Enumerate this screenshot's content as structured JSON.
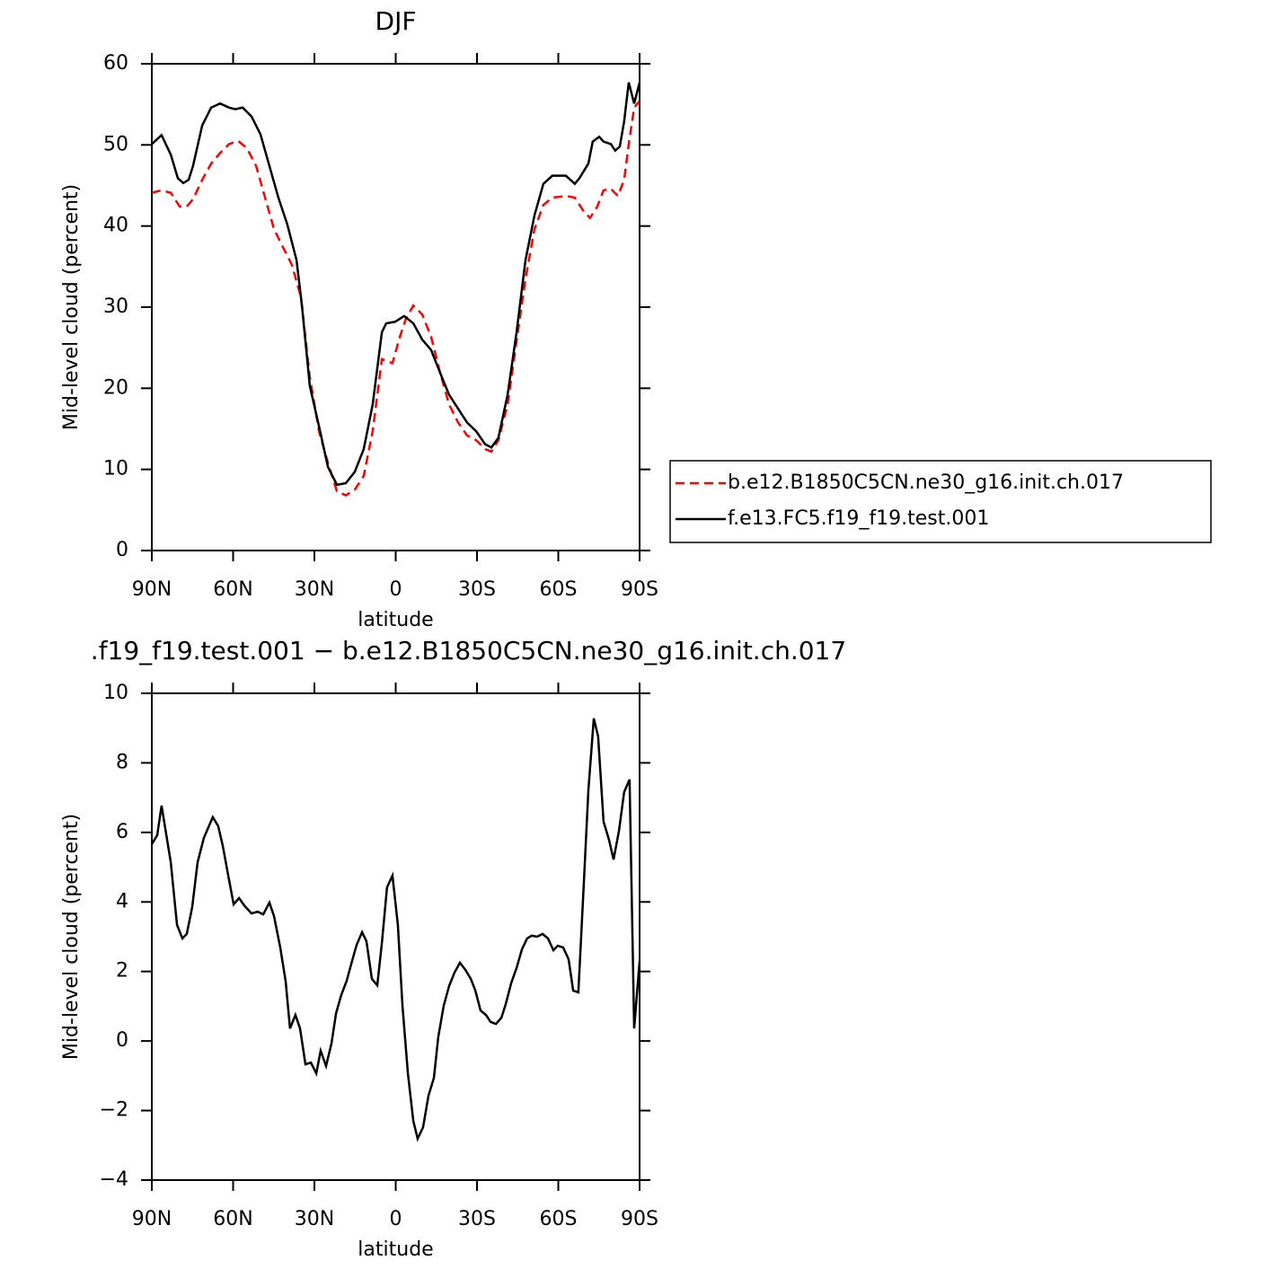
{
  "chart_data": [
    {
      "type": "line",
      "title": "DJF",
      "xlabel": "latitude",
      "ylabel": "Mid-level cloud (percent)",
      "xlim": [
        90,
        -90
      ],
      "xticks": [
        {
          "value": 90,
          "label": "90N"
        },
        {
          "value": 60,
          "label": "60N"
        },
        {
          "value": 30,
          "label": "30N"
        },
        0,
        {
          "value": -30,
          "label": "30S"
        },
        {
          "value": -60,
          "label": "60S"
        },
        {
          "value": -90,
          "label": "90S"
        }
      ],
      "ylim": [
        0,
        60
      ],
      "yticks": [
        0,
        10,
        20,
        30,
        40,
        50,
        60
      ],
      "legend": "right",
      "series": [
        {
          "name": "b.e12.B1850C5CN.ne30_g16.init.ch.017",
          "color": "#ff0000",
          "linestyle": "dashed",
          "x": [
            90,
            86.4,
            83,
            79.7,
            77.1,
            74.8,
            71.4,
            68.1,
            64.8,
            61.5,
            58.2,
            54.9,
            51.5,
            48.2,
            44.9,
            41.6,
            38.3,
            35,
            31.7,
            28.3,
            25,
            21.7,
            18.4,
            15.1,
            11.8,
            8.5,
            5.1,
            1.2,
            -1.5,
            -3.8,
            -6.5,
            -9.8,
            -13.1,
            -16.4,
            -19.7,
            -23,
            -26.3,
            -29.7,
            -33,
            -35.3,
            -37.9,
            -41.3,
            -44.6,
            -47.9,
            -51.2,
            -54.5,
            -57.8,
            -62.8,
            -66.1,
            -69.4,
            -71.7,
            -74.4,
            -76.7,
            -79.4,
            -82,
            -84.3,
            -86,
            -88,
            -90
          ],
          "values": [
            44.1,
            44.4,
            44.1,
            42.4,
            42.4,
            43.3,
            45.7,
            47.7,
            49,
            50.1,
            50.5,
            49.6,
            47.4,
            43.5,
            39.6,
            37.4,
            35.2,
            31.3,
            21.4,
            14.7,
            10.8,
            7.3,
            6.8,
            7.5,
            9.2,
            14.7,
            23.6,
            23.1,
            26.3,
            28.6,
            30.2,
            29.1,
            26.3,
            21.9,
            18,
            15.8,
            14.2,
            13.6,
            12.5,
            12.2,
            13.6,
            18,
            25.8,
            33.5,
            39.6,
            42.6,
            43.5,
            43.7,
            43.5,
            41.8,
            41,
            42.4,
            44.4,
            44.6,
            43.7,
            45.7,
            50.1,
            54.6,
            55.4
          ]
        },
        {
          "name": "f.e13.FC5.f19_f19.test.001",
          "color": "#000000",
          "linestyle": "solid",
          "x": [
            90,
            86.4,
            83,
            80.4,
            78.4,
            76.4,
            74.8,
            71.4,
            68.1,
            64.8,
            61.5,
            59.2,
            56.5,
            53.2,
            49.9,
            46.6,
            43.3,
            40,
            36.6,
            34.6,
            31.7,
            28.3,
            25,
            21.7,
            18.4,
            15.1,
            11.8,
            8.5,
            5.1,
            3.5,
            0.2,
            -3.1,
            -6.5,
            -9.8,
            -13.1,
            -16.4,
            -19.7,
            -23,
            -26.3,
            -29.7,
            -33,
            -35.3,
            -37.9,
            -41.3,
            -44.6,
            -47.9,
            -51.2,
            -54.5,
            -57.8,
            -62.8,
            -66.1,
            -67.8,
            -71.1,
            -72.7,
            -75.1,
            -76.7,
            -79.4,
            -81,
            -82.7,
            -84.3,
            -86,
            -88,
            -90
          ],
          "values": [
            50.1,
            51.2,
            48.8,
            45.9,
            45.3,
            45.7,
            47.4,
            52.4,
            54.6,
            55.1,
            54.6,
            54.4,
            54.6,
            53.5,
            51.3,
            47.4,
            43.5,
            40.2,
            35.8,
            30.2,
            20.3,
            15.3,
            10.3,
            8.1,
            8.3,
            9.7,
            12.5,
            18,
            26.9,
            28,
            28.2,
            28.9,
            28,
            26,
            24.7,
            21.9,
            19.2,
            17.5,
            15.8,
            14.7,
            13.1,
            12.7,
            13.9,
            19.2,
            26.9,
            35.8,
            41.3,
            45.2,
            46.2,
            46.2,
            45.2,
            45.9,
            47.7,
            50.4,
            51,
            50.4,
            50.1,
            49.3,
            49.8,
            52.9,
            57.7,
            55.1,
            57.7
          ]
        }
      ]
    },
    {
      "type": "line",
      "title": ".f19_f19.test.001 − b.e12.B1850C5CN.ne30_g16.init.ch.017",
      "xlabel": "latitude",
      "ylabel": "Mid-level cloud (percent)",
      "xlim": [
        90,
        -90
      ],
      "xticks": [
        {
          "value": 90,
          "label": "90N"
        },
        {
          "value": 60,
          "label": "60N"
        },
        {
          "value": 30,
          "label": "30N"
        },
        0,
        {
          "value": -30,
          "label": "30S"
        },
        {
          "value": -60,
          "label": "60S"
        },
        {
          "value": -90,
          "label": "90S"
        }
      ],
      "ylim": [
        -4,
        10
      ],
      "yticks": [
        {
          "value": -4,
          "label": "−4"
        },
        {
          "value": -2,
          "label": "−2"
        },
        0,
        2,
        4,
        6,
        8,
        10
      ],
      "color": "#000000",
      "x": [
        90,
        88,
        86.4,
        83,
        80.7,
        78.7,
        77.1,
        75.1,
        73.1,
        70.8,
        67.5,
        65.5,
        63.8,
        61.8,
        59.8,
        57.8,
        55.9,
        53.2,
        50.9,
        48.9,
        46.6,
        44.9,
        42.6,
        40.6,
        39,
        37,
        35.3,
        33.3,
        31.3,
        29.3,
        27.7,
        25.7,
        23.7,
        22,
        20.1,
        18.1,
        16.1,
        14.4,
        12.4,
        10.8,
        8.8,
        6.8,
        5.1,
        3.2,
        1.2,
        -0.8,
        -2.5,
        -4.5,
        -6.5,
        -8.1,
        -10.1,
        -12.1,
        -14.1,
        -15.7,
        -17.7,
        -19.7,
        -21.7,
        -23.7,
        -25.7,
        -27.7,
        -29.4,
        -31.3,
        -33.3,
        -35,
        -37,
        -39,
        -40.6,
        -42.6,
        -44.6,
        -46.6,
        -48.5,
        -50.2,
        -52.2,
        -54.2,
        -56.2,
        -58.2,
        -59.8,
        -61.8,
        -63.8,
        -65.5,
        -67.4,
        -69.4,
        -71.1,
        -73.1,
        -74.7,
        -76.7,
        -78.7,
        -80.4,
        -82.4,
        -84.3,
        -86.3,
        -88,
        -90
      ],
      "values": [
        5.66,
        5.92,
        6.77,
        5.14,
        3.34,
        2.95,
        3.08,
        3.85,
        5.14,
        5.84,
        6.44,
        6.18,
        5.61,
        4.76,
        3.93,
        4.11,
        3.9,
        3.67,
        3.72,
        3.64,
        3.98,
        3.59,
        2.69,
        1.71,
        0.36,
        0.75,
        0.36,
        -0.67,
        -0.62,
        -0.93,
        -0.28,
        -0.72,
        -0.07,
        0.8,
        1.32,
        1.73,
        2.3,
        2.77,
        3.13,
        2.87,
        1.79,
        1.6,
        2.82,
        4.42,
        4.76,
        3.34,
        1.01,
        -0.93,
        -2.3,
        -2.81,
        -2.48,
        -1.57,
        -1.06,
        0.11,
        1.01,
        1.58,
        1.97,
        2.25,
        2.05,
        1.79,
        1.45,
        0.88,
        0.75,
        0.55,
        0.49,
        0.67,
        1.06,
        1.66,
        2.1,
        2.64,
        2.95,
        3.03,
        3,
        3.08,
        2.95,
        2.61,
        2.74,
        2.69,
        2.35,
        1.45,
        1.4,
        4.5,
        7.21,
        9.28,
        8.76,
        6.31,
        5.79,
        5.22,
        6.05,
        7.16,
        7.52,
        0.36,
        2.3
      ]
    }
  ]
}
